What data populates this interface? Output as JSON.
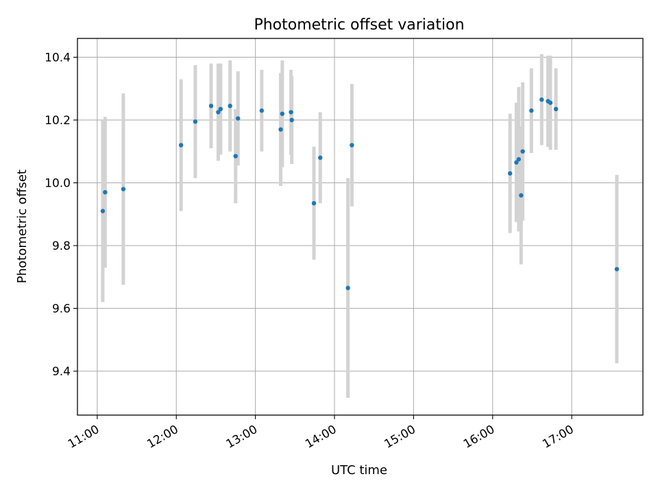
{
  "chart_data": {
    "type": "scatter",
    "title": "Photometric offset variation",
    "xlabel": "UTC time",
    "ylabel": "Photometric offset",
    "x_unit": "UTC hour",
    "xlim": [
      10.75,
      17.9
    ],
    "ylim": [
      9.26,
      10.46
    ],
    "grid": true,
    "x_tick_values": [
      11,
      12,
      13,
      14,
      15,
      16,
      17
    ],
    "x_tick_labels": [
      "11:00",
      "12:00",
      "13:00",
      "14:00",
      "15:00",
      "16:00",
      "17:00"
    ],
    "y_tick_values": [
      9.4,
      9.6,
      9.8,
      10.0,
      10.2,
      10.4
    ],
    "y_tick_labels": [
      "9.4",
      "9.6",
      "9.8",
      "10.0",
      "10.2",
      "10.4"
    ],
    "point_color": "#1f77b4",
    "errorbar_color": "#d3d3d3",
    "points": [
      {
        "x": 11.07,
        "y": 9.91,
        "err": 0.29
      },
      {
        "x": 11.1,
        "y": 9.97,
        "err": 0.24
      },
      {
        "x": 11.33,
        "y": 9.98,
        "err": 0.305
      },
      {
        "x": 12.06,
        "y": 10.12,
        "err": 0.21
      },
      {
        "x": 12.24,
        "y": 10.195,
        "err": 0.18
      },
      {
        "x": 12.44,
        "y": 10.245,
        "err": 0.135
      },
      {
        "x": 12.53,
        "y": 10.225,
        "err": 0.155
      },
      {
        "x": 12.56,
        "y": 10.235,
        "err": 0.145
      },
      {
        "x": 12.68,
        "y": 10.245,
        "err": 0.145
      },
      {
        "x": 12.75,
        "y": 10.085,
        "err": 0.15
      },
      {
        "x": 12.78,
        "y": 10.205,
        "err": 0.15
      },
      {
        "x": 13.08,
        "y": 10.23,
        "err": 0.13
      },
      {
        "x": 13.32,
        "y": 10.17,
        "err": 0.18
      },
      {
        "x": 13.34,
        "y": 10.22,
        "err": 0.17
      },
      {
        "x": 13.45,
        "y": 10.225,
        "err": 0.135
      },
      {
        "x": 13.46,
        "y": 10.2,
        "err": 0.14
      },
      {
        "x": 13.74,
        "y": 9.935,
        "err": 0.18
      },
      {
        "x": 13.82,
        "y": 10.08,
        "err": 0.145
      },
      {
        "x": 14.17,
        "y": 9.665,
        "err": 0.35
      },
      {
        "x": 14.22,
        "y": 10.12,
        "err": 0.195
      },
      {
        "x": 16.22,
        "y": 10.03,
        "err": 0.19
      },
      {
        "x": 16.3,
        "y": 10.065,
        "err": 0.19
      },
      {
        "x": 16.33,
        "y": 10.075,
        "err": 0.23
      },
      {
        "x": 16.36,
        "y": 9.96,
        "err": 0.22
      },
      {
        "x": 16.38,
        "y": 10.1,
        "err": 0.22
      },
      {
        "x": 16.49,
        "y": 10.23,
        "err": 0.135
      },
      {
        "x": 16.62,
        "y": 10.265,
        "err": 0.145
      },
      {
        "x": 16.7,
        "y": 10.26,
        "err": 0.145
      },
      {
        "x": 16.73,
        "y": 10.255,
        "err": 0.15
      },
      {
        "x": 16.8,
        "y": 10.235,
        "err": 0.13
      },
      {
        "x": 17.57,
        "y": 9.725,
        "err": 0.3
      }
    ]
  }
}
